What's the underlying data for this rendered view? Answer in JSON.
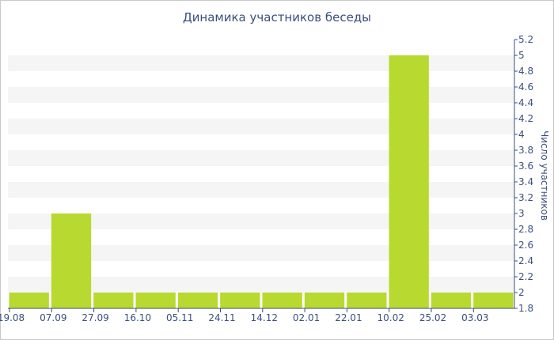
{
  "chart_data": {
    "type": "bar",
    "title": "Динамика участников беседы",
    "xlabel": "",
    "ylabel": "Число участников",
    "ylim": [
      1.8,
      5.2
    ],
    "y_ticks": [
      "1.8",
      "2",
      "2.2",
      "2.4",
      "2.6",
      "2.8",
      "3",
      "3.2",
      "3.4",
      "3.6",
      "3.8",
      "4",
      "4.2",
      "4.4",
      "4.6",
      "4.8",
      "5",
      "5.2"
    ],
    "x_tick_labels": [
      "19.08",
      "07.09",
      "27.09",
      "16.10",
      "05.11",
      "24.11",
      "14.12",
      "02.01",
      "22.01",
      "10.02",
      "25.02",
      "03.03"
    ],
    "y_axis_position": "right",
    "grid": "alternating horizontal bands",
    "bar_color": "#b8d930",
    "categories": [
      "19.08",
      "07.09",
      "27.09",
      "16.10",
      "05.11",
      "24.11",
      "14.12",
      "02.01",
      "22.01",
      "10.02",
      "25.02",
      "03.03"
    ],
    "values": [
      2,
      3,
      2,
      2,
      2,
      2,
      2,
      2,
      2,
      5,
      2,
      2
    ]
  }
}
